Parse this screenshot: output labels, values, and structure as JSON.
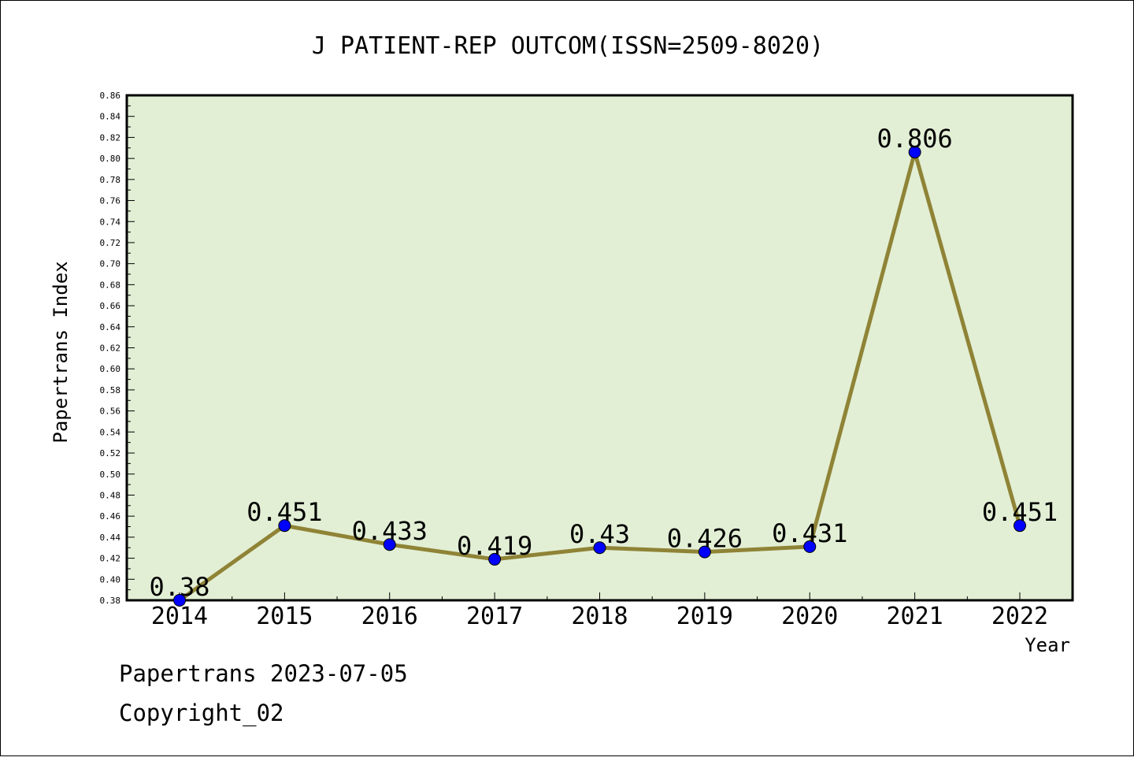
{
  "chart_data": {
    "type": "line",
    "title": "J PATIENT-REP OUTCOM(ISSN=2509-8020)",
    "xlabel": "Year",
    "ylabel": "Papertrans Index",
    "categories": [
      "2014",
      "2015",
      "2016",
      "2017",
      "2018",
      "2019",
      "2020",
      "2021",
      "2022"
    ],
    "series": [
      {
        "values": [
          0.38,
          0.451,
          0.433,
          0.419,
          0.43,
          0.426,
          0.431,
          0.806,
          0.451
        ],
        "labels": [
          "0.38",
          "0.451",
          "0.433",
          "0.419",
          "0.43",
          "0.426",
          "0.431",
          "0.806",
          "0.451"
        ]
      }
    ],
    "ylim": [
      0.38,
      0.86
    ],
    "yticks": [
      "0.38",
      "0.40",
      "0.42",
      "0.44",
      "0.46",
      "0.48",
      "0.50",
      "0.52",
      "0.54",
      "0.56",
      "0.58",
      "0.60",
      "0.62",
      "0.64",
      "0.66",
      "0.68",
      "0.70",
      "0.72",
      "0.74",
      "0.76",
      "0.78",
      "0.80",
      "0.82",
      "0.84",
      "0.86"
    ],
    "grid": false,
    "legend": "none",
    "colors": {
      "plot_background": "#e2efd5",
      "line": "#8f8336",
      "marker": "#0000ff"
    }
  },
  "footer": {
    "line1": "Papertrans 2023-07-05",
    "line2": "Copyright_02"
  }
}
